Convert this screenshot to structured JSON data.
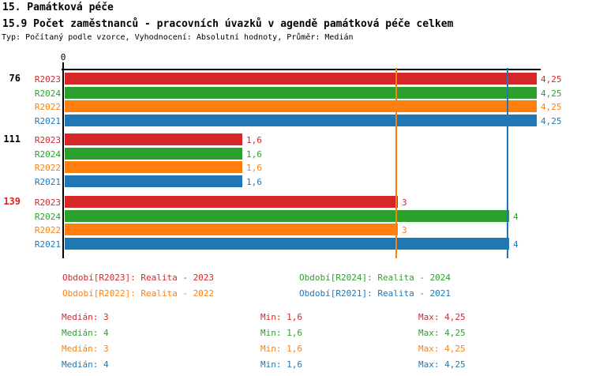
{
  "page": {
    "title_line1": "15. Památková péče",
    "title_line2": "15.9 Počet zaměstnanců - pracovních úvazků v agendě památková péče celkem",
    "subtitle": "Typ: Počítaný podle vzorce, Vyhodnocení: Absolutní hodnoty, Průměr: Medián"
  },
  "chart_data": {
    "type": "bar",
    "orientation": "horizontal",
    "xlim": [
      0,
      4.25
    ],
    "zero_tick_label": "0",
    "grid": false,
    "legend_position": "bottom",
    "series": [
      {
        "id": "R2023",
        "label": "R2023",
        "color": "#d62728"
      },
      {
        "id": "R2024",
        "label": "R2024",
        "color": "#2ca02c"
      },
      {
        "id": "R2022",
        "label": "R2022",
        "color": "#ff7f0e"
      },
      {
        "id": "R2021",
        "label": "R2021",
        "color": "#1f77b4"
      }
    ],
    "groups": [
      {
        "label": "76",
        "label_color": "#000000",
        "bars": [
          {
            "series": "R2023",
            "value": 4.25,
            "display": "4,25"
          },
          {
            "series": "R2024",
            "value": 4.25,
            "display": "4,25"
          },
          {
            "series": "R2022",
            "value": 4.25,
            "display": "4,25"
          },
          {
            "series": "R2021",
            "value": 4.25,
            "display": "4,25"
          }
        ]
      },
      {
        "label": "111",
        "label_color": "#000000",
        "bars": [
          {
            "series": "R2023",
            "value": 1.6,
            "display": "1,6"
          },
          {
            "series": "R2024",
            "value": 1.6,
            "display": "1,6"
          },
          {
            "series": "R2022",
            "value": 1.6,
            "display": "1,6"
          },
          {
            "series": "R2021",
            "value": 1.6,
            "display": "1,6"
          }
        ]
      },
      {
        "label": "139",
        "label_color": "#d62728",
        "bars": [
          {
            "series": "R2023",
            "value": 3,
            "display": "3"
          },
          {
            "series": "R2024",
            "value": 4,
            "display": "4"
          },
          {
            "series": "R2022",
            "value": 3,
            "display": "3"
          },
          {
            "series": "R2021",
            "value": 4,
            "display": "4"
          }
        ]
      }
    ],
    "median_lines": [
      {
        "value": 3,
        "color": "#ff7f0e"
      },
      {
        "value": 4,
        "color": "#1f77b4"
      }
    ]
  },
  "legend": [
    {
      "text": "Období[R2023]: Realita - 2023",
      "color": "#d62728",
      "col": 0,
      "row": 0
    },
    {
      "text": "Období[R2024]: Realita - 2024",
      "color": "#2ca02c",
      "col": 1,
      "row": 0
    },
    {
      "text": "Období[R2022]: Realita - 2022",
      "color": "#ff7f0e",
      "col": 0,
      "row": 1
    },
    {
      "text": "Období[R2021]: Realita - 2021",
      "color": "#1f77b4",
      "col": 1,
      "row": 1
    }
  ],
  "stats": [
    {
      "color": "#d62728",
      "median": "Medián: 3",
      "min": "Min: 1,6",
      "max": "Max: 4,25"
    },
    {
      "color": "#2ca02c",
      "median": "Medián: 4",
      "min": "Min: 1,6",
      "max": "Max: 4,25"
    },
    {
      "color": "#ff7f0e",
      "median": "Medián: 3",
      "min": "Min: 1,6",
      "max": "Max: 4,25"
    },
    {
      "color": "#1f77b4",
      "median": "Medián: 4",
      "min": "Min: 1,6",
      "max": "Max: 4,25"
    }
  ]
}
